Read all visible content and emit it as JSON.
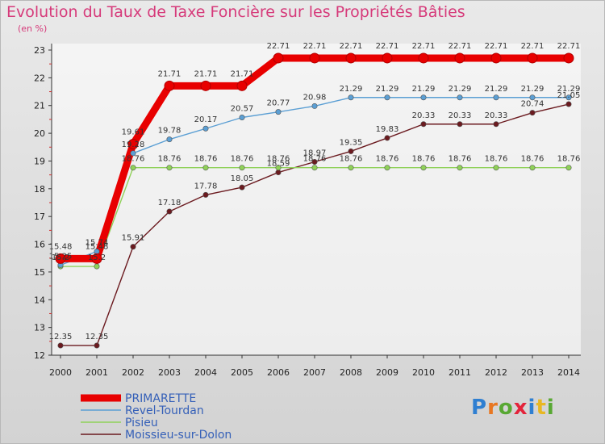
{
  "header": {
    "title": "Evolution du Taux de Taxe Foncière sur les Propriétés Bâties",
    "subtitle": "(en %)"
  },
  "logo": {
    "letters": [
      "P",
      "r",
      "o",
      "x",
      "i",
      "t",
      "i"
    ]
  },
  "chart_data": {
    "type": "line",
    "title": "Evolution du Taux de Taxe Foncière sur les Propriétés Bâties",
    "ylabel": "(en %)",
    "xlabel": "",
    "ylim": [
      12,
      23
    ],
    "yticks": [
      12,
      13,
      14,
      15,
      16,
      17,
      18,
      19,
      20,
      21,
      22,
      23
    ],
    "x": [
      "2000",
      "2001",
      "2002",
      "2003",
      "2004",
      "2005",
      "2006",
      "2007",
      "2008",
      "2009",
      "2010",
      "2011",
      "2012",
      "2013",
      "2014"
    ],
    "grid": false,
    "legend_position": "bottom-left",
    "series": [
      {
        "name": "Moissieu-sur-Dolon",
        "color": "#6b1a1f",
        "values": [
          12.35,
          12.35,
          15.91,
          17.18,
          17.78,
          18.05,
          18.59,
          18.97,
          19.35,
          19.83,
          20.33,
          20.33,
          20.33,
          20.74,
          21.05
        ],
        "labels": [
          "12.35",
          "12.35",
          "15.91",
          "17.18",
          "17.78",
          "18.05",
          "18.59",
          "18.97",
          "19.35",
          "19.83",
          "20.33",
          "20.33",
          "20.33",
          "20.74",
          "21.05"
        ]
      },
      {
        "name": "Pisieu",
        "color": "#8fd158",
        "values": [
          15.2,
          15.2,
          18.76,
          18.76,
          18.76,
          18.76,
          18.76,
          18.76,
          18.76,
          18.76,
          18.76,
          18.76,
          18.76,
          18.76,
          18.76
        ],
        "labels": [
          "15.2",
          "15.2",
          "18.76",
          "18.76",
          "18.76",
          "18.76",
          "18.76",
          "18.76",
          "18.76",
          "18.76",
          "18.76",
          "18.76",
          "18.76",
          "18.76",
          "18.76"
        ]
      },
      {
        "name": "Revel-Tourdan",
        "color": "#5b9fd4",
        "values": [
          15.25,
          15.74,
          19.28,
          19.78,
          20.17,
          20.57,
          20.77,
          20.98,
          21.29,
          21.29,
          21.29,
          21.29,
          21.29,
          21.29,
          21.29
        ],
        "labels": [
          "15.25",
          "15.74",
          "19.28",
          "19.78",
          "20.17",
          "20.57",
          "20.77",
          "20.98",
          "21.29",
          "21.29",
          "21.29",
          "21.29",
          "21.29",
          "21.29",
          "21.29"
        ]
      },
      {
        "name": "PRIMARETTE",
        "color": "#e80000",
        "values": [
          15.48,
          15.48,
          19.61,
          21.71,
          21.71,
          21.71,
          22.71,
          22.71,
          22.71,
          22.71,
          22.71,
          22.71,
          22.71,
          22.71,
          22.71
        ],
        "labels": [
          "15.48",
          "15.48",
          "19.61",
          "21.71",
          "21.71",
          "21.71",
          "22.71",
          "22.71",
          "22.71",
          "22.71",
          "22.71",
          "22.71",
          "22.71",
          "22.71",
          "22.71"
        ]
      }
    ]
  }
}
